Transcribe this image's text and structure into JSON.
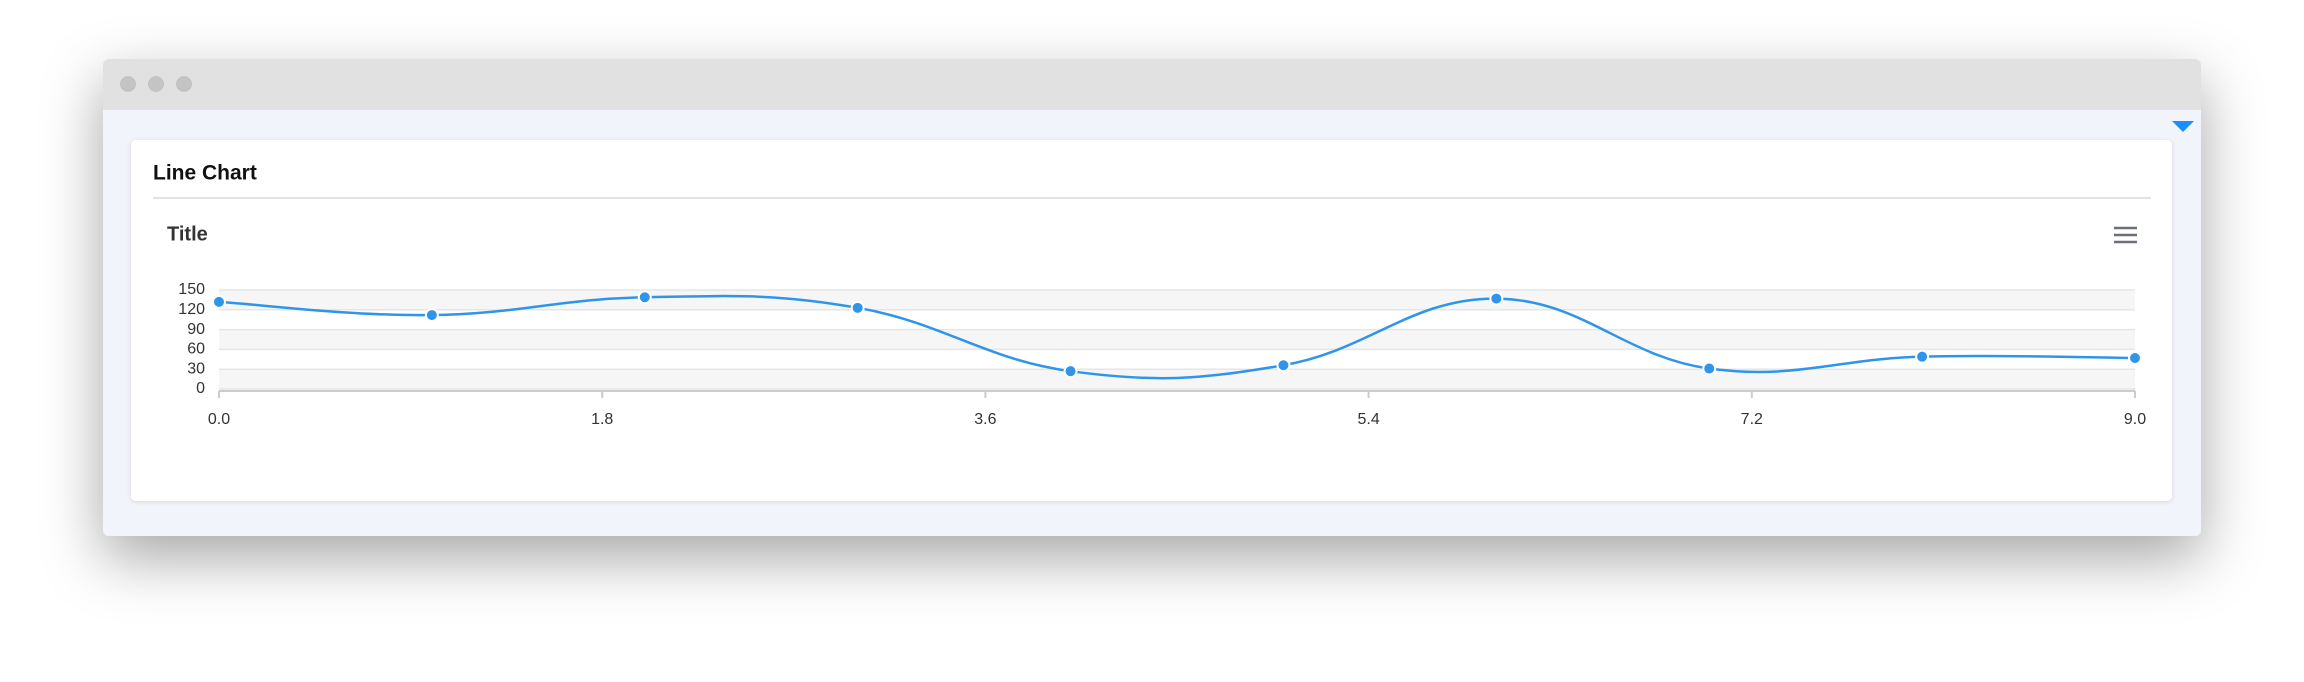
{
  "card": {
    "title": "Line Chart"
  },
  "chart_data": {
    "type": "line",
    "title": "Title",
    "x": [
      0,
      1,
      2,
      3,
      4,
      5,
      6,
      7,
      8,
      9
    ],
    "series": [
      {
        "color": "#2f95ea",
        "values": [
          132,
          112,
          139,
          123,
          27,
          36,
          137,
          31,
          49,
          47
        ]
      }
    ],
    "xlim": [
      0,
      9
    ],
    "xticks": [
      {
        "value": 0,
        "label": "0.0"
      },
      1.8,
      3.6,
      5.4,
      7.2,
      {
        "value": 9,
        "label": "9.0"
      }
    ],
    "ylim": [
      0,
      150
    ],
    "yticks": [
      0,
      30,
      60,
      90,
      120,
      150
    ],
    "grid": true
  }
}
